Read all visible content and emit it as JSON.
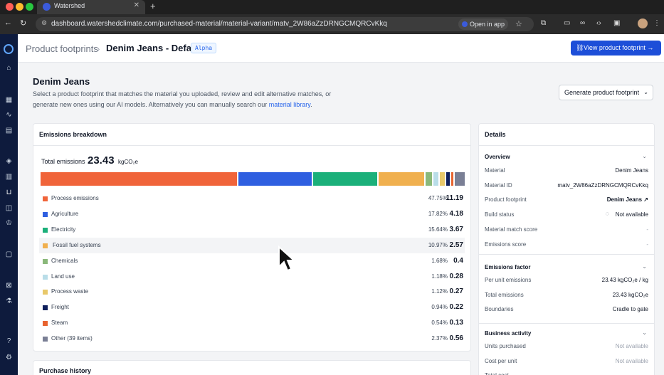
{
  "browser": {
    "tab_title": "Watershed",
    "url": "dashboard.watershedclimate.com/purchased-material/material-variant/matv_2W86aZzDRNGCMQRCvKkq",
    "open_in_app": "Open in app"
  },
  "header": {
    "breadcrumb_parent": "Product footprints",
    "breadcrumb_current": "Denim Jeans - Default",
    "badge": "Alpha",
    "view_button": "View product footprint"
  },
  "page": {
    "title": "Denim Jeans",
    "desc_part1": "Select a product footprint that matches the material you uploaded, review and edit alternative matches, or generate new ones using our AI models. Alternatively you can manually search our",
    "desc_link": "material library",
    "desc_end": ".",
    "generate_button": "Generate product footprint"
  },
  "breakdown": {
    "title": "Emissions breakdown",
    "total_label": "Total emissions",
    "total_value": "23.43",
    "total_unit": "kgCO₂e",
    "rows": [
      {
        "label": "Process emissions",
        "pct": "47.75%",
        "value": "11.19",
        "share": 47.75,
        "color": "#f0643a"
      },
      {
        "label": "Agriculture",
        "pct": "17.82%",
        "value": "4.18",
        "share": 17.82,
        "color": "#2f5fe0"
      },
      {
        "label": "Electricity",
        "pct": "15.64%",
        "value": "3.67",
        "share": 15.64,
        "color": "#1bb07a"
      },
      {
        "label": "Fossil fuel systems",
        "pct": "10.97%",
        "value": "2.57",
        "share": 10.97,
        "color": "#f0b04f"
      },
      {
        "label": "Chemicals",
        "pct": "1.68%",
        "value": "0.4",
        "share": 1.68,
        "color": "#8ab87a"
      },
      {
        "label": "Land use",
        "pct": "1.18%",
        "value": "0.28",
        "share": 1.18,
        "color": "#b9dde8"
      },
      {
        "label": "Process waste",
        "pct": "1.12%",
        "value": "0.27",
        "share": 1.12,
        "color": "#e8c86a"
      },
      {
        "label": "Freight",
        "pct": "0.94%",
        "value": "0.22",
        "share": 0.94,
        "color": "#0f1f5c"
      },
      {
        "label": "Steam",
        "pct": "0.54%",
        "value": "0.13",
        "share": 0.54,
        "color": "#e8632f"
      },
      {
        "label": "Other (39 items)",
        "pct": "2.37%",
        "value": "0.56",
        "share": 2.37,
        "color": "#7a7f95"
      }
    ],
    "highlighted_row": "Fossil fuel systems"
  },
  "purchase_history": {
    "title": "Purchase history"
  },
  "details": {
    "title": "Details",
    "overview": {
      "title": "Overview",
      "rows": [
        {
          "label": "Material",
          "value": "Denim Jeans"
        },
        {
          "label": "Material ID",
          "value": "matv_2W86aZzDRNGCMQRCvKkq"
        },
        {
          "label": "Product footprint",
          "value": "Denim Jeans ↗"
        },
        {
          "label": "Build status",
          "value": "Not available"
        },
        {
          "label": "Material match score",
          "value": "-"
        },
        {
          "label": "Emissions score",
          "value": "-"
        }
      ]
    },
    "emissions_factor": {
      "title": "Emissions factor",
      "rows": [
        {
          "label": "Per unit emissions",
          "value": "23.43 kgCO₂e / kg"
        },
        {
          "label": "Total emissions",
          "value": "23.43 kgCO₂e"
        },
        {
          "label": "Boundaries",
          "value": "Cradle to gate"
        }
      ]
    },
    "business_activity": {
      "title": "Business activity",
      "rows": [
        {
          "label": "Units purchased",
          "value": "Not available"
        },
        {
          "label": "Cost per unit",
          "value": "Not available"
        },
        {
          "label": "Total cost",
          "value": ""
        }
      ]
    }
  },
  "icons": {
    "sidebar": [
      "home-icon",
      "building-icon",
      "activity-icon",
      "document-icon",
      "layers-icon",
      "bar-chart-icon",
      "basket-icon",
      "chart-icon",
      "trophy-icon",
      "file-icon",
      "export-icon",
      "flask-icon",
      "help-icon",
      "settings-icon"
    ]
  }
}
